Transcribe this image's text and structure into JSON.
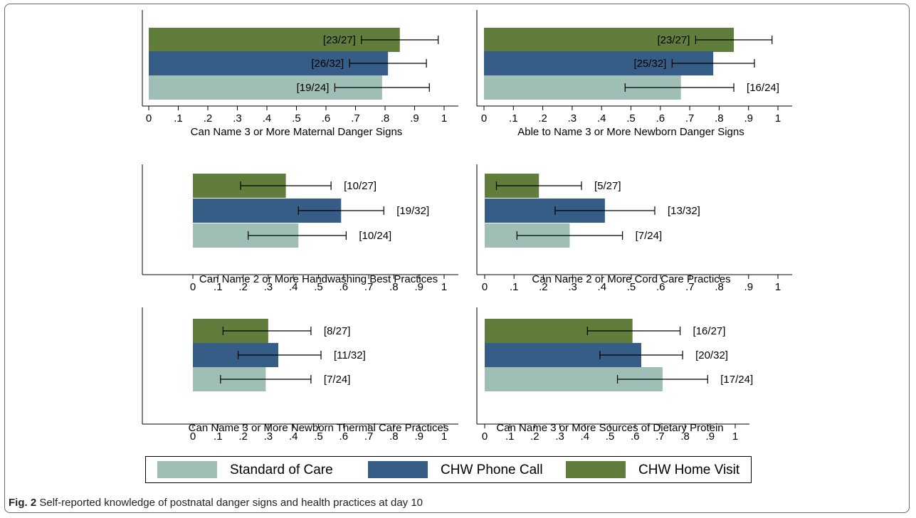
{
  "colors": {
    "standard_of_care": "#9fbfb6",
    "chw_phone_call": "#355d86",
    "chw_home_visit": "#607d3c",
    "axis": "#000000",
    "errorbar": "#000000"
  },
  "legend": {
    "items": [
      {
        "label": "Standard of Care",
        "color": "#9fbfb6"
      },
      {
        "label": "CHW Phone Call",
        "color": "#355d86"
      },
      {
        "label": "CHW Home Visit",
        "color": "#607d3c"
      }
    ]
  },
  "caption": {
    "figure_label": "Fig. 2",
    "text": "Self-reported knowledge of postnatal danger signs and health practices at day 10"
  },
  "chart_data": [
    {
      "type": "bar",
      "orientation": "horizontal",
      "xlabel": "Can Name 3 or More Maternal Danger Signs",
      "xlim": [
        0,
        1
      ],
      "xticks": [
        "0",
        ".1",
        ".2",
        ".3",
        ".4",
        ".5",
        ".6",
        ".7",
        ".8",
        ".9",
        "1"
      ],
      "series": [
        {
          "name": "CHW Home Visit",
          "value": 0.85,
          "ci": [
            0.72,
            0.98
          ],
          "label": "[23/27]"
        },
        {
          "name": "CHW Phone Call",
          "value": 0.81,
          "ci": [
            0.68,
            0.94
          ],
          "label": "[26/32]"
        },
        {
          "name": "Standard of Care",
          "value": 0.79,
          "ci": [
            0.63,
            0.95
          ],
          "label": "[19/24]"
        }
      ]
    },
    {
      "type": "bar",
      "orientation": "horizontal",
      "xlabel": "Able to Name 3 or More Newborn Danger Signs",
      "xlim": [
        0,
        1
      ],
      "xticks": [
        "0",
        ".1",
        ".2",
        ".3",
        ".4",
        ".5",
        ".6",
        ".7",
        ".8",
        ".9",
        "1"
      ],
      "series": [
        {
          "name": "CHW Home Visit",
          "value": 0.85,
          "ci": [
            0.72,
            0.98
          ],
          "label": "[23/27]"
        },
        {
          "name": "CHW Phone Call",
          "value": 0.78,
          "ci": [
            0.64,
            0.92
          ],
          "label": "[25/32]"
        },
        {
          "name": "Standard of Care",
          "value": 0.67,
          "ci": [
            0.48,
            0.85
          ],
          "label": "[16/24]"
        }
      ]
    },
    {
      "type": "bar",
      "orientation": "horizontal",
      "xlabel": "Can Name 2 or More Handwashing Best Practices",
      "xlim": [
        0,
        1
      ],
      "xticks": [
        "0",
        ".1",
        ".2",
        ".3",
        ".4",
        ".5",
        ".6",
        ".7",
        ".8",
        ".9",
        "1"
      ],
      "series": [
        {
          "name": "CHW Home Visit",
          "value": 0.37,
          "ci": [
            0.19,
            0.55
          ],
          "label": "[10/27]"
        },
        {
          "name": "CHW Phone Call",
          "value": 0.59,
          "ci": [
            0.42,
            0.76
          ],
          "label": "[19/32]"
        },
        {
          "name": "Standard of Care",
          "value": 0.42,
          "ci": [
            0.22,
            0.61
          ],
          "label": "[10/24]"
        }
      ]
    },
    {
      "type": "bar",
      "orientation": "horizontal",
      "xlabel": "Can Name 2 or More Cord Care Practices",
      "xlim": [
        0,
        1
      ],
      "xticks": [
        "0",
        ".1",
        ".2",
        ".3",
        ".4",
        ".5",
        ".6",
        ".7",
        ".8",
        ".9",
        "1"
      ],
      "series": [
        {
          "name": "CHW Home Visit",
          "value": 0.185,
          "ci": [
            0.04,
            0.33
          ],
          "label": "[5/27]"
        },
        {
          "name": "CHW Phone Call",
          "value": 0.41,
          "ci": [
            0.24,
            0.58
          ],
          "label": "[13/32]"
        },
        {
          "name": "Standard of Care",
          "value": 0.29,
          "ci": [
            0.11,
            0.47
          ],
          "label": "[7/24]"
        }
      ]
    },
    {
      "type": "bar",
      "orientation": "horizontal",
      "xlabel": "Can Name 3 or More Newborn Thermal Care Practices",
      "xlim": [
        0,
        1
      ],
      "xticks": [
        "0",
        ".1",
        ".2",
        ".3",
        ".4",
        ".5",
        ".6",
        ".7",
        ".8",
        ".9",
        "1"
      ],
      "series": [
        {
          "name": "CHW Home Visit",
          "value": 0.3,
          "ci": [
            0.12,
            0.47
          ],
          "label": "[8/27]"
        },
        {
          "name": "CHW Phone Call",
          "value": 0.34,
          "ci": [
            0.18,
            0.51
          ],
          "label": "[11/32]"
        },
        {
          "name": "Standard of Care",
          "value": 0.29,
          "ci": [
            0.11,
            0.47
          ],
          "label": "[7/24]"
        }
      ]
    },
    {
      "type": "bar",
      "orientation": "horizontal",
      "xlabel": "Can Name 3 or More Sources of Dietary Protein",
      "xlim": [
        0,
        1
      ],
      "xticks": [
        "0",
        ".1",
        ".2",
        ".3",
        ".4",
        ".5",
        ".6",
        ".7",
        ".8",
        ".9",
        "1"
      ],
      "series": [
        {
          "name": "CHW Home Visit",
          "value": 0.59,
          "ci": [
            0.41,
            0.78
          ],
          "label": "[16/27]"
        },
        {
          "name": "CHW Phone Call",
          "value": 0.625,
          "ci": [
            0.46,
            0.79
          ],
          "label": "[20/32]"
        },
        {
          "name": "Standard of Care",
          "value": 0.71,
          "ci": [
            0.53,
            0.89
          ],
          "label": "[17/24]"
        }
      ]
    }
  ]
}
